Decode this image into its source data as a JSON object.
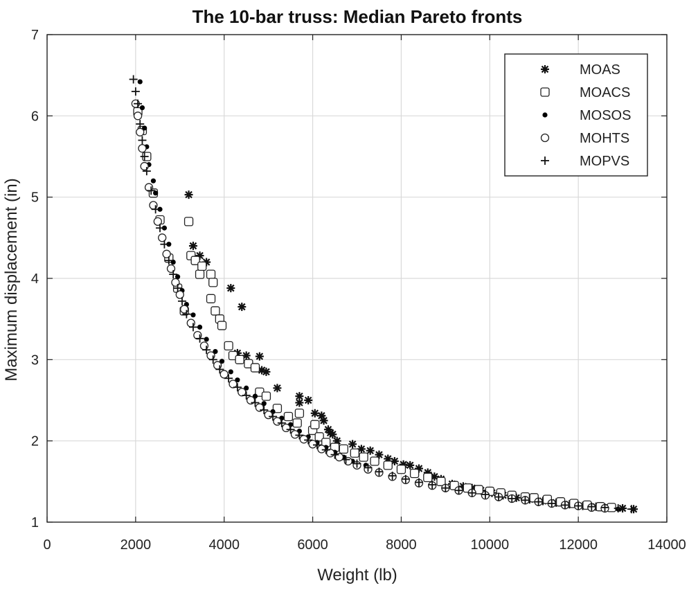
{
  "chart_data": {
    "type": "scatter",
    "title": "The 10-bar truss: Median Pareto fronts",
    "xlabel": "Weight (lb)",
    "ylabel": "Maximum displacement (in)",
    "xlim": [
      0,
      14000
    ],
    "ylim": [
      1,
      7
    ],
    "xticks": [
      0,
      2000,
      4000,
      6000,
      8000,
      10000,
      12000,
      14000
    ],
    "xtick_labels": [
      "0",
      "2000",
      "4000",
      "6000",
      "8000",
      "10000",
      "12000",
      "14000"
    ],
    "yticks": [
      1,
      2,
      3,
      4,
      5,
      6,
      7
    ],
    "ytick_labels": [
      "1",
      "2",
      "3",
      "4",
      "5",
      "6",
      "7"
    ],
    "grid": true,
    "legend_position": "top-right",
    "series": [
      {
        "name": "MOAS",
        "marker": "asterisk",
        "points": [
          [
            3200,
            5.03
          ],
          [
            3300,
            4.4
          ],
          [
            3450,
            4.28
          ],
          [
            3600,
            4.2
          ],
          [
            4150,
            3.88
          ],
          [
            4400,
            3.65
          ],
          [
            4300,
            3.08
          ],
          [
            4500,
            3.05
          ],
          [
            4800,
            3.04
          ],
          [
            4850,
            2.87
          ],
          [
            4950,
            2.85
          ],
          [
            5200,
            2.65
          ],
          [
            5700,
            2.55
          ],
          [
            5900,
            2.5
          ],
          [
            5700,
            2.47
          ],
          [
            6050,
            2.34
          ],
          [
            6200,
            2.31
          ],
          [
            6250,
            2.25
          ],
          [
            6350,
            2.14
          ],
          [
            6400,
            2.1
          ],
          [
            6450,
            2.08
          ],
          [
            6550,
            2.0
          ],
          [
            6900,
            1.96
          ],
          [
            7100,
            1.9
          ],
          [
            7300,
            1.88
          ],
          [
            7500,
            1.83
          ],
          [
            7700,
            1.78
          ],
          [
            7850,
            1.75
          ],
          [
            8050,
            1.71
          ],
          [
            8200,
            1.7
          ],
          [
            8400,
            1.66
          ],
          [
            8600,
            1.61
          ],
          [
            8750,
            1.56
          ],
          [
            8900,
            1.53
          ],
          [
            9150,
            1.47
          ],
          [
            9400,
            1.44
          ],
          [
            9600,
            1.42
          ],
          [
            9800,
            1.39
          ],
          [
            10050,
            1.36
          ],
          [
            10300,
            1.33
          ],
          [
            10600,
            1.3
          ],
          [
            10900,
            1.28
          ],
          [
            11200,
            1.26
          ],
          [
            11500,
            1.24
          ],
          [
            11800,
            1.22
          ],
          [
            12100,
            1.2
          ],
          [
            12400,
            1.19
          ],
          [
            12700,
            1.18
          ],
          [
            13000,
            1.17
          ],
          [
            13250,
            1.16
          ]
        ]
      },
      {
        "name": "MOACS",
        "marker": "square",
        "points": [
          [
            2050,
            6.05
          ],
          [
            2150,
            5.82
          ],
          [
            2250,
            5.5
          ],
          [
            2400,
            5.05
          ],
          [
            2550,
            4.72
          ],
          [
            2750,
            4.25
          ],
          [
            2950,
            3.88
          ],
          [
            3100,
            3.6
          ],
          [
            3200,
            4.7
          ],
          [
            3250,
            4.28
          ],
          [
            3350,
            4.22
          ],
          [
            3450,
            4.05
          ],
          [
            3500,
            4.15
          ],
          [
            3700,
            4.05
          ],
          [
            3750,
            3.95
          ],
          [
            3700,
            3.75
          ],
          [
            3800,
            3.6
          ],
          [
            3900,
            3.5
          ],
          [
            3950,
            3.42
          ],
          [
            4100,
            3.17
          ],
          [
            4200,
            3.05
          ],
          [
            4350,
            3.0
          ],
          [
            4550,
            2.95
          ],
          [
            4700,
            2.9
          ],
          [
            4800,
            2.6
          ],
          [
            4950,
            2.55
          ],
          [
            5200,
            2.4
          ],
          [
            5450,
            2.3
          ],
          [
            5650,
            2.22
          ],
          [
            5700,
            2.34
          ],
          [
            6000,
            2.13
          ],
          [
            6050,
            2.2
          ],
          [
            6150,
            2.05
          ],
          [
            6300,
            1.98
          ],
          [
            6500,
            1.92
          ],
          [
            6700,
            1.9
          ],
          [
            6950,
            1.85
          ],
          [
            7150,
            1.8
          ],
          [
            7400,
            1.75
          ],
          [
            7700,
            1.7
          ],
          [
            8000,
            1.65
          ],
          [
            8300,
            1.6
          ],
          [
            8600,
            1.55
          ],
          [
            8900,
            1.5
          ],
          [
            9200,
            1.45
          ],
          [
            9500,
            1.42
          ],
          [
            9750,
            1.4
          ],
          [
            10000,
            1.38
          ],
          [
            10250,
            1.36
          ],
          [
            10500,
            1.33
          ],
          [
            10800,
            1.31
          ],
          [
            11000,
            1.3
          ],
          [
            11300,
            1.28
          ],
          [
            11600,
            1.25
          ],
          [
            11900,
            1.23
          ],
          [
            12200,
            1.21
          ],
          [
            12500,
            1.19
          ],
          [
            12750,
            1.18
          ]
        ]
      },
      {
        "name": "MOSOS",
        "marker": "dot",
        "points": [
          [
            2100,
            6.42
          ],
          [
            2150,
            6.1
          ],
          [
            2200,
            5.85
          ],
          [
            2250,
            5.62
          ],
          [
            2300,
            5.4
          ],
          [
            2400,
            5.2
          ],
          [
            2450,
            5.05
          ],
          [
            2550,
            4.85
          ],
          [
            2650,
            4.62
          ],
          [
            2750,
            4.42
          ],
          [
            2850,
            4.2
          ],
          [
            2950,
            4.02
          ],
          [
            3050,
            3.85
          ],
          [
            3150,
            3.68
          ],
          [
            3300,
            3.55
          ],
          [
            3450,
            3.4
          ],
          [
            3600,
            3.25
          ],
          [
            3800,
            3.1
          ],
          [
            3950,
            2.98
          ],
          [
            4150,
            2.85
          ],
          [
            4300,
            2.75
          ],
          [
            4500,
            2.65
          ],
          [
            4700,
            2.55
          ],
          [
            4900,
            2.46
          ],
          [
            5100,
            2.36
          ],
          [
            5300,
            2.28
          ],
          [
            5500,
            2.2
          ],
          [
            5700,
            2.12
          ],
          [
            5900,
            2.05
          ],
          [
            6100,
            1.98
          ],
          [
            6300,
            1.92
          ],
          [
            6500,
            1.86
          ],
          [
            6700,
            1.8
          ],
          [
            6900,
            1.75
          ],
          [
            7200,
            1.7
          ],
          [
            7500,
            1.63
          ],
          [
            7800,
            1.58
          ],
          [
            8100,
            1.54
          ],
          [
            8400,
            1.5
          ],
          [
            8700,
            1.46
          ],
          [
            9000,
            1.43
          ],
          [
            9300,
            1.4
          ],
          [
            9600,
            1.37
          ],
          [
            9900,
            1.34
          ],
          [
            10200,
            1.32
          ],
          [
            10500,
            1.3
          ],
          [
            10800,
            1.28
          ],
          [
            11100,
            1.26
          ],
          [
            11400,
            1.24
          ],
          [
            11700,
            1.22
          ],
          [
            12000,
            1.2
          ],
          [
            12300,
            1.19
          ],
          [
            12600,
            1.17
          ],
          [
            12900,
            1.16
          ]
        ]
      },
      {
        "name": "MOHTS",
        "marker": "circle",
        "points": [
          [
            2000,
            6.15
          ],
          [
            2050,
            6.0
          ],
          [
            2100,
            5.8
          ],
          [
            2150,
            5.6
          ],
          [
            2200,
            5.38
          ],
          [
            2300,
            5.12
          ],
          [
            2400,
            4.9
          ],
          [
            2500,
            4.7
          ],
          [
            2600,
            4.5
          ],
          [
            2700,
            4.3
          ],
          [
            2800,
            4.12
          ],
          [
            2900,
            3.95
          ],
          [
            3000,
            3.8
          ],
          [
            3100,
            3.62
          ],
          [
            3250,
            3.45
          ],
          [
            3400,
            3.3
          ],
          [
            3550,
            3.17
          ],
          [
            3700,
            3.05
          ],
          [
            3850,
            2.93
          ],
          [
            4000,
            2.82
          ],
          [
            4200,
            2.7
          ],
          [
            4400,
            2.6
          ],
          [
            4600,
            2.5
          ],
          [
            4800,
            2.41
          ],
          [
            5000,
            2.32
          ],
          [
            5200,
            2.24
          ],
          [
            5400,
            2.16
          ],
          [
            5600,
            2.08
          ],
          [
            5800,
            2.02
          ],
          [
            6000,
            1.96
          ],
          [
            6200,
            1.9
          ],
          [
            6400,
            1.85
          ],
          [
            6600,
            1.8
          ],
          [
            6800,
            1.75
          ],
          [
            7000,
            1.7
          ],
          [
            7250,
            1.65
          ],
          [
            7500,
            1.61
          ],
          [
            7800,
            1.56
          ],
          [
            8100,
            1.52
          ],
          [
            8400,
            1.48
          ],
          [
            8700,
            1.45
          ],
          [
            9000,
            1.42
          ],
          [
            9300,
            1.39
          ],
          [
            9600,
            1.36
          ],
          [
            9900,
            1.33
          ],
          [
            10200,
            1.31
          ],
          [
            10500,
            1.29
          ],
          [
            10800,
            1.27
          ],
          [
            11100,
            1.25
          ],
          [
            11400,
            1.23
          ],
          [
            11700,
            1.21
          ],
          [
            12000,
            1.2
          ],
          [
            12300,
            1.18
          ],
          [
            12600,
            1.17
          ]
        ]
      },
      {
        "name": "MOPVS",
        "marker": "plus",
        "points": [
          [
            1950,
            6.45
          ],
          [
            2000,
            6.3
          ],
          [
            2050,
            6.15
          ],
          [
            2100,
            5.9
          ],
          [
            2150,
            5.7
          ],
          [
            2200,
            5.5
          ],
          [
            2250,
            5.32
          ],
          [
            2350,
            5.08
          ],
          [
            2450,
            4.85
          ],
          [
            2550,
            4.62
          ],
          [
            2650,
            4.42
          ],
          [
            2750,
            4.22
          ],
          [
            2850,
            4.05
          ],
          [
            2950,
            3.88
          ],
          [
            3050,
            3.72
          ],
          [
            3150,
            3.56
          ],
          [
            3300,
            3.4
          ],
          [
            3450,
            3.26
          ],
          [
            3600,
            3.12
          ],
          [
            3750,
            3.0
          ],
          [
            3900,
            2.88
          ],
          [
            4100,
            2.77
          ],
          [
            4300,
            2.66
          ],
          [
            4500,
            2.56
          ],
          [
            4700,
            2.47
          ],
          [
            4900,
            2.38
          ],
          [
            5100,
            2.3
          ],
          [
            5300,
            2.22
          ],
          [
            5500,
            2.14
          ],
          [
            5700,
            2.07
          ],
          [
            5900,
            2.01
          ],
          [
            6100,
            1.95
          ],
          [
            6300,
            1.89
          ],
          [
            6500,
            1.83
          ],
          [
            6750,
            1.77
          ],
          [
            7000,
            1.72
          ],
          [
            7250,
            1.67
          ],
          [
            7500,
            1.62
          ],
          [
            7800,
            1.57
          ],
          [
            8100,
            1.53
          ],
          [
            8400,
            1.49
          ],
          [
            8700,
            1.46
          ],
          [
            9000,
            1.42
          ],
          [
            9300,
            1.39
          ],
          [
            9600,
            1.36
          ],
          [
            9900,
            1.34
          ],
          [
            10200,
            1.31
          ],
          [
            10500,
            1.29
          ],
          [
            10800,
            1.27
          ],
          [
            11100,
            1.25
          ],
          [
            11400,
            1.23
          ],
          [
            11700,
            1.21
          ],
          [
            12000,
            1.2
          ],
          [
            12300,
            1.19
          ],
          [
            12600,
            1.18
          ],
          [
            12900,
            1.17
          ],
          [
            13200,
            1.16
          ]
        ]
      }
    ]
  }
}
